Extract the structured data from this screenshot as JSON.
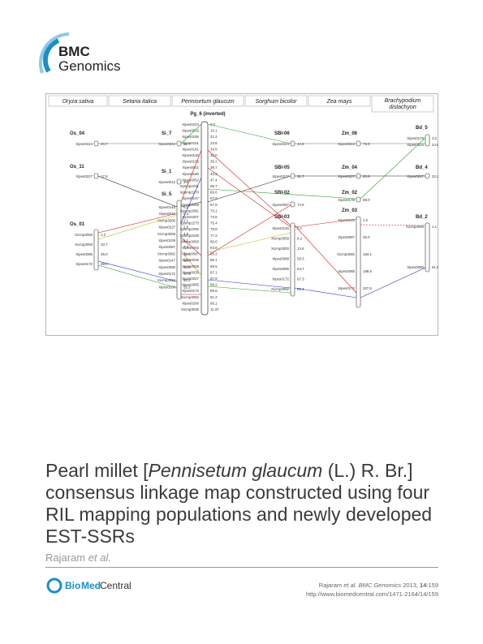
{
  "brand": {
    "logo_word": "BMC",
    "journal": "Genomics",
    "colors": {
      "arc_blue": "#1a8fc7",
      "arc_light": "#8cc8e8",
      "text": "#222222"
    }
  },
  "figure": {
    "species": [
      "Oryza sativa",
      "Setaria italica",
      "Pennisetum glaucum",
      "Sorghum bicolor",
      "Zea mays",
      "Brachypodium distachyon"
    ],
    "central_title": "Pg_6 (inverted)",
    "chromosomes": [
      "Os_04",
      "Os_11",
      "Os_01",
      "Si_7",
      "Si_1",
      "Si_5",
      "SBI-06",
      "SBI-05",
      "SBI-02",
      "SBI-03",
      "Zm_06",
      "Zm_04",
      "Zm_02",
      "Zm_03",
      "Bd_5",
      "Bd_4",
      "Bd_2"
    ],
    "pg_markers": [
      "Xipes0224",
      "Xipes0019",
      "Xipes0156",
      "Xipes0151",
      "Xipes0141",
      "Xipes0145",
      "Xipes0109",
      "Xipes0011",
      "Xipes0180",
      "Xipes0052",
      "Xpsmp2231",
      "Xpsmp2270",
      "Xipes0147",
      "Xicmp3059",
      "Xpsmp2081",
      "Xipes0207",
      "Xpsmp2273",
      "Xpsmp2255",
      "Xpsmp2249",
      "Xicmp3000",
      "Xipes0003",
      "Xipes0087",
      "Xipes0048",
      "Xipes0009",
      "Xipes0035",
      "Xipes0027",
      "Xipes0085",
      "Xipes0172",
      "Xicmp3092",
      "Xipes0200",
      "Xicmp3038"
    ],
    "pg_positions": [
      "0.0",
      "15.1",
      "21.2",
      "23.8",
      "34.5",
      "35.0",
      "36.2",
      "38.7",
      "43.2",
      "47.4",
      "65.7",
      "66.6",
      "67.5",
      "67.9",
      "70.1",
      "73.5",
      "75.4",
      "75.8",
      "77.2",
      "80.6",
      "83.8",
      "85.2",
      "86.1",
      "86.5",
      "87.1",
      "87.9",
      "88.2",
      "89.6",
      "91.2",
      "96.1",
      "11.37"
    ],
    "os_04": {
      "marker": "Xipes0224",
      "pos": "20.7"
    },
    "os_11": {
      "marker": "Xipes0227",
      "pos": "17.6"
    },
    "os_01": {
      "markers": [
        "Xicmp3059",
        "Xicmp3000",
        "Xipes0085",
        "Xipes0172"
      ],
      "positions": [
        "1.2",
        "10.7",
        "35.0",
        "38.0"
      ]
    },
    "si_7": {
      "marker": "Xipes0224",
      "pos": "21.7"
    },
    "si_1": {
      "marker": "Xipes0012",
      "pos": "3.5"
    },
    "si_5": {
      "markers": [
        "Xipes0145",
        "Xipes0011",
        "Xicmp3000",
        "Xipes0227",
        "Xicmp3059",
        "Xipes0109",
        "Xipes0087",
        "Xicmp3092",
        "Xipes0147",
        "Xipes0085",
        "Xipes0172",
        "Xicmp3092",
        "Xipes0200"
      ],
      "positions": [
        "0.2",
        "0.4",
        "2.1",
        "2.5",
        "4.8",
        "5.1",
        "7.3",
        "11.1",
        "38.0",
        "44.9",
        "47.9",
        "50.3",
        "52.2"
      ]
    },
    "sbi_06": {
      "marker": "Xipes0224",
      "pos": "44.5"
    },
    "sbi_05": {
      "marker": "Xipes0227",
      "pos": "31.7"
    },
    "sbi_02": {
      "marker": "Xipes0087",
      "pos": "74.5"
    },
    "sbi_03": {
      "markers": [
        "Xipes0145",
        "Xicmp3059",
        "Xicmp3000",
        "Xipes0088",
        "Xipes0085",
        "Xipes0172",
        "Xicmp3092"
      ],
      "positions": [
        "0.1",
        "8.2",
        "13.6",
        "59.3",
        "64.7",
        "67.3",
        "69.4"
      ]
    },
    "zm_06": {
      "marker": "Xipes0224",
      "pos": "76.5"
    },
    "zm_04": {
      "marker": "Xipes0227",
      "pos": "20.6"
    },
    "zm_02": {
      "marker": "Xipes0178",
      "pos": "98.0"
    },
    "zm_03": {
      "markers": [
        "Xipes0145",
        "Xipes0087",
        "Xicmp3092",
        "Xipes0085",
        "Xipes0172"
      ],
      "positions": [
        "1.2",
        "36.0",
        "183.1",
        "188.6",
        "207.6"
      ]
    },
    "bd_5": {
      "markers": [
        "Xipes0178",
        "Xipes0224"
      ],
      "positions": [
        "3.2",
        "24.6"
      ]
    },
    "bd_4": {
      "marker": "Xipes0227",
      "pos": "22.2"
    },
    "bd_2": {
      "markers": [
        "Xicmp3059",
        "Xipes0085"
      ],
      "positions": [
        "1.1",
        "51.5"
      ]
    }
  },
  "article": {
    "title_1": "Pearl millet [",
    "title_species": "Pennisetum glaucum",
    "title_2": " (L.) R. Br.] consensus linkage map constructed using four RIL mapping populations and newly developed EST-SSRs",
    "authors": "Rajaram ",
    "authors_etal": "et al.",
    "publisher_1": "Bio",
    "publisher_2": "Med",
    "publisher_3": " Central",
    "citation_authors": "Rajaram ",
    "citation_etal": "et al.",
    "citation_journal": " BMC Genomics",
    "citation_year": " 2013, ",
    "citation_volume": "14",
    "citation_issue": ":159",
    "citation_url": "http://www.biomedcentral.com/1471-2164/14/159"
  }
}
